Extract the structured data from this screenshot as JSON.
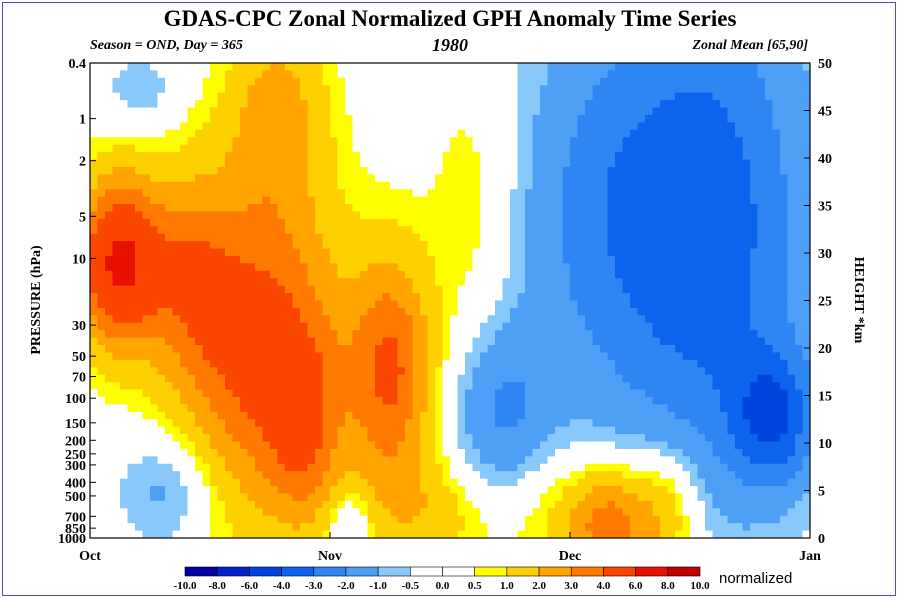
{
  "title": "GDAS-CPC Zonal Normalized GPH Anomaly Time Series",
  "subtitle_left": "Season = OND, Day = 365",
  "subtitle_center": "1980",
  "subtitle_right": "Zonal Mean [65,90]",
  "colorbar_unit": "normalized",
  "chart_data": {
    "type": "heatmap",
    "title": "GDAS-CPC Zonal Normalized GPH Anomaly Time Series",
    "xlabel": "",
    "ylabel": "PRESSURE (hPa)",
    "y2label": "HEIGHT *km",
    "x_ticks": [
      "Oct",
      "Nov",
      "Dec",
      "Jan"
    ],
    "x_range": [
      "Oct 1",
      "Jan 1"
    ],
    "y_scale": "log",
    "y_range_hPa": [
      1000,
      0.4
    ],
    "y_ticks_hPa": [
      "0.4",
      "1",
      "2",
      "5",
      "10",
      "30",
      "50",
      "70",
      "100",
      "150",
      "200",
      "250",
      "300",
      "400",
      "500",
      "700",
      "850",
      "1000"
    ],
    "y2_ticks_km": [
      "0",
      "5",
      "10",
      "15",
      "20",
      "25",
      "30",
      "35",
      "40",
      "45",
      "50"
    ],
    "y2_range_km": [
      0,
      50
    ],
    "colorbar": {
      "levels": [
        "-10.0",
        "-8.0",
        "-6.0",
        "-4.0",
        "-3.0",
        "-2.0",
        "-1.0",
        "-0.5",
        "0.0",
        "0.5",
        "1.0",
        "2.0",
        "3.0",
        "4.0",
        "6.0",
        "8.0",
        "10.0"
      ],
      "colors": [
        "#0000a0",
        "#0022c8",
        "#0044e0",
        "#0a64ee",
        "#2e86f2",
        "#4ea0f6",
        "#88c8fa",
        "#ffffff",
        "#ffffff",
        "#fffe00",
        "#ffd000",
        "#ffa400",
        "#fe7a00",
        "#fb4600",
        "#e81000",
        "#c00000"
      ]
    },
    "regions": [
      {
        "period": "early-mid Oct",
        "layer": "strat 5-70 hPa",
        "level": "3.0-6.0"
      },
      {
        "period": "mid Oct",
        "layer": "30-200 hPa",
        "level": "4.0-6.0"
      },
      {
        "period": "mid Nov",
        "layer": "50-150 hPa",
        "level": "3.0-6.0"
      },
      {
        "period": "Dec-Jan",
        "layer": "0.4-100 hPa",
        "level": "-2.0 to -4.0"
      },
      {
        "period": "late Dec",
        "layer": "100-200 hPa",
        "level": "-4.0 to -6.0"
      },
      {
        "period": "mid Dec",
        "layer": "700-1000 hPa",
        "level": "3.0-6.0"
      }
    ]
  }
}
